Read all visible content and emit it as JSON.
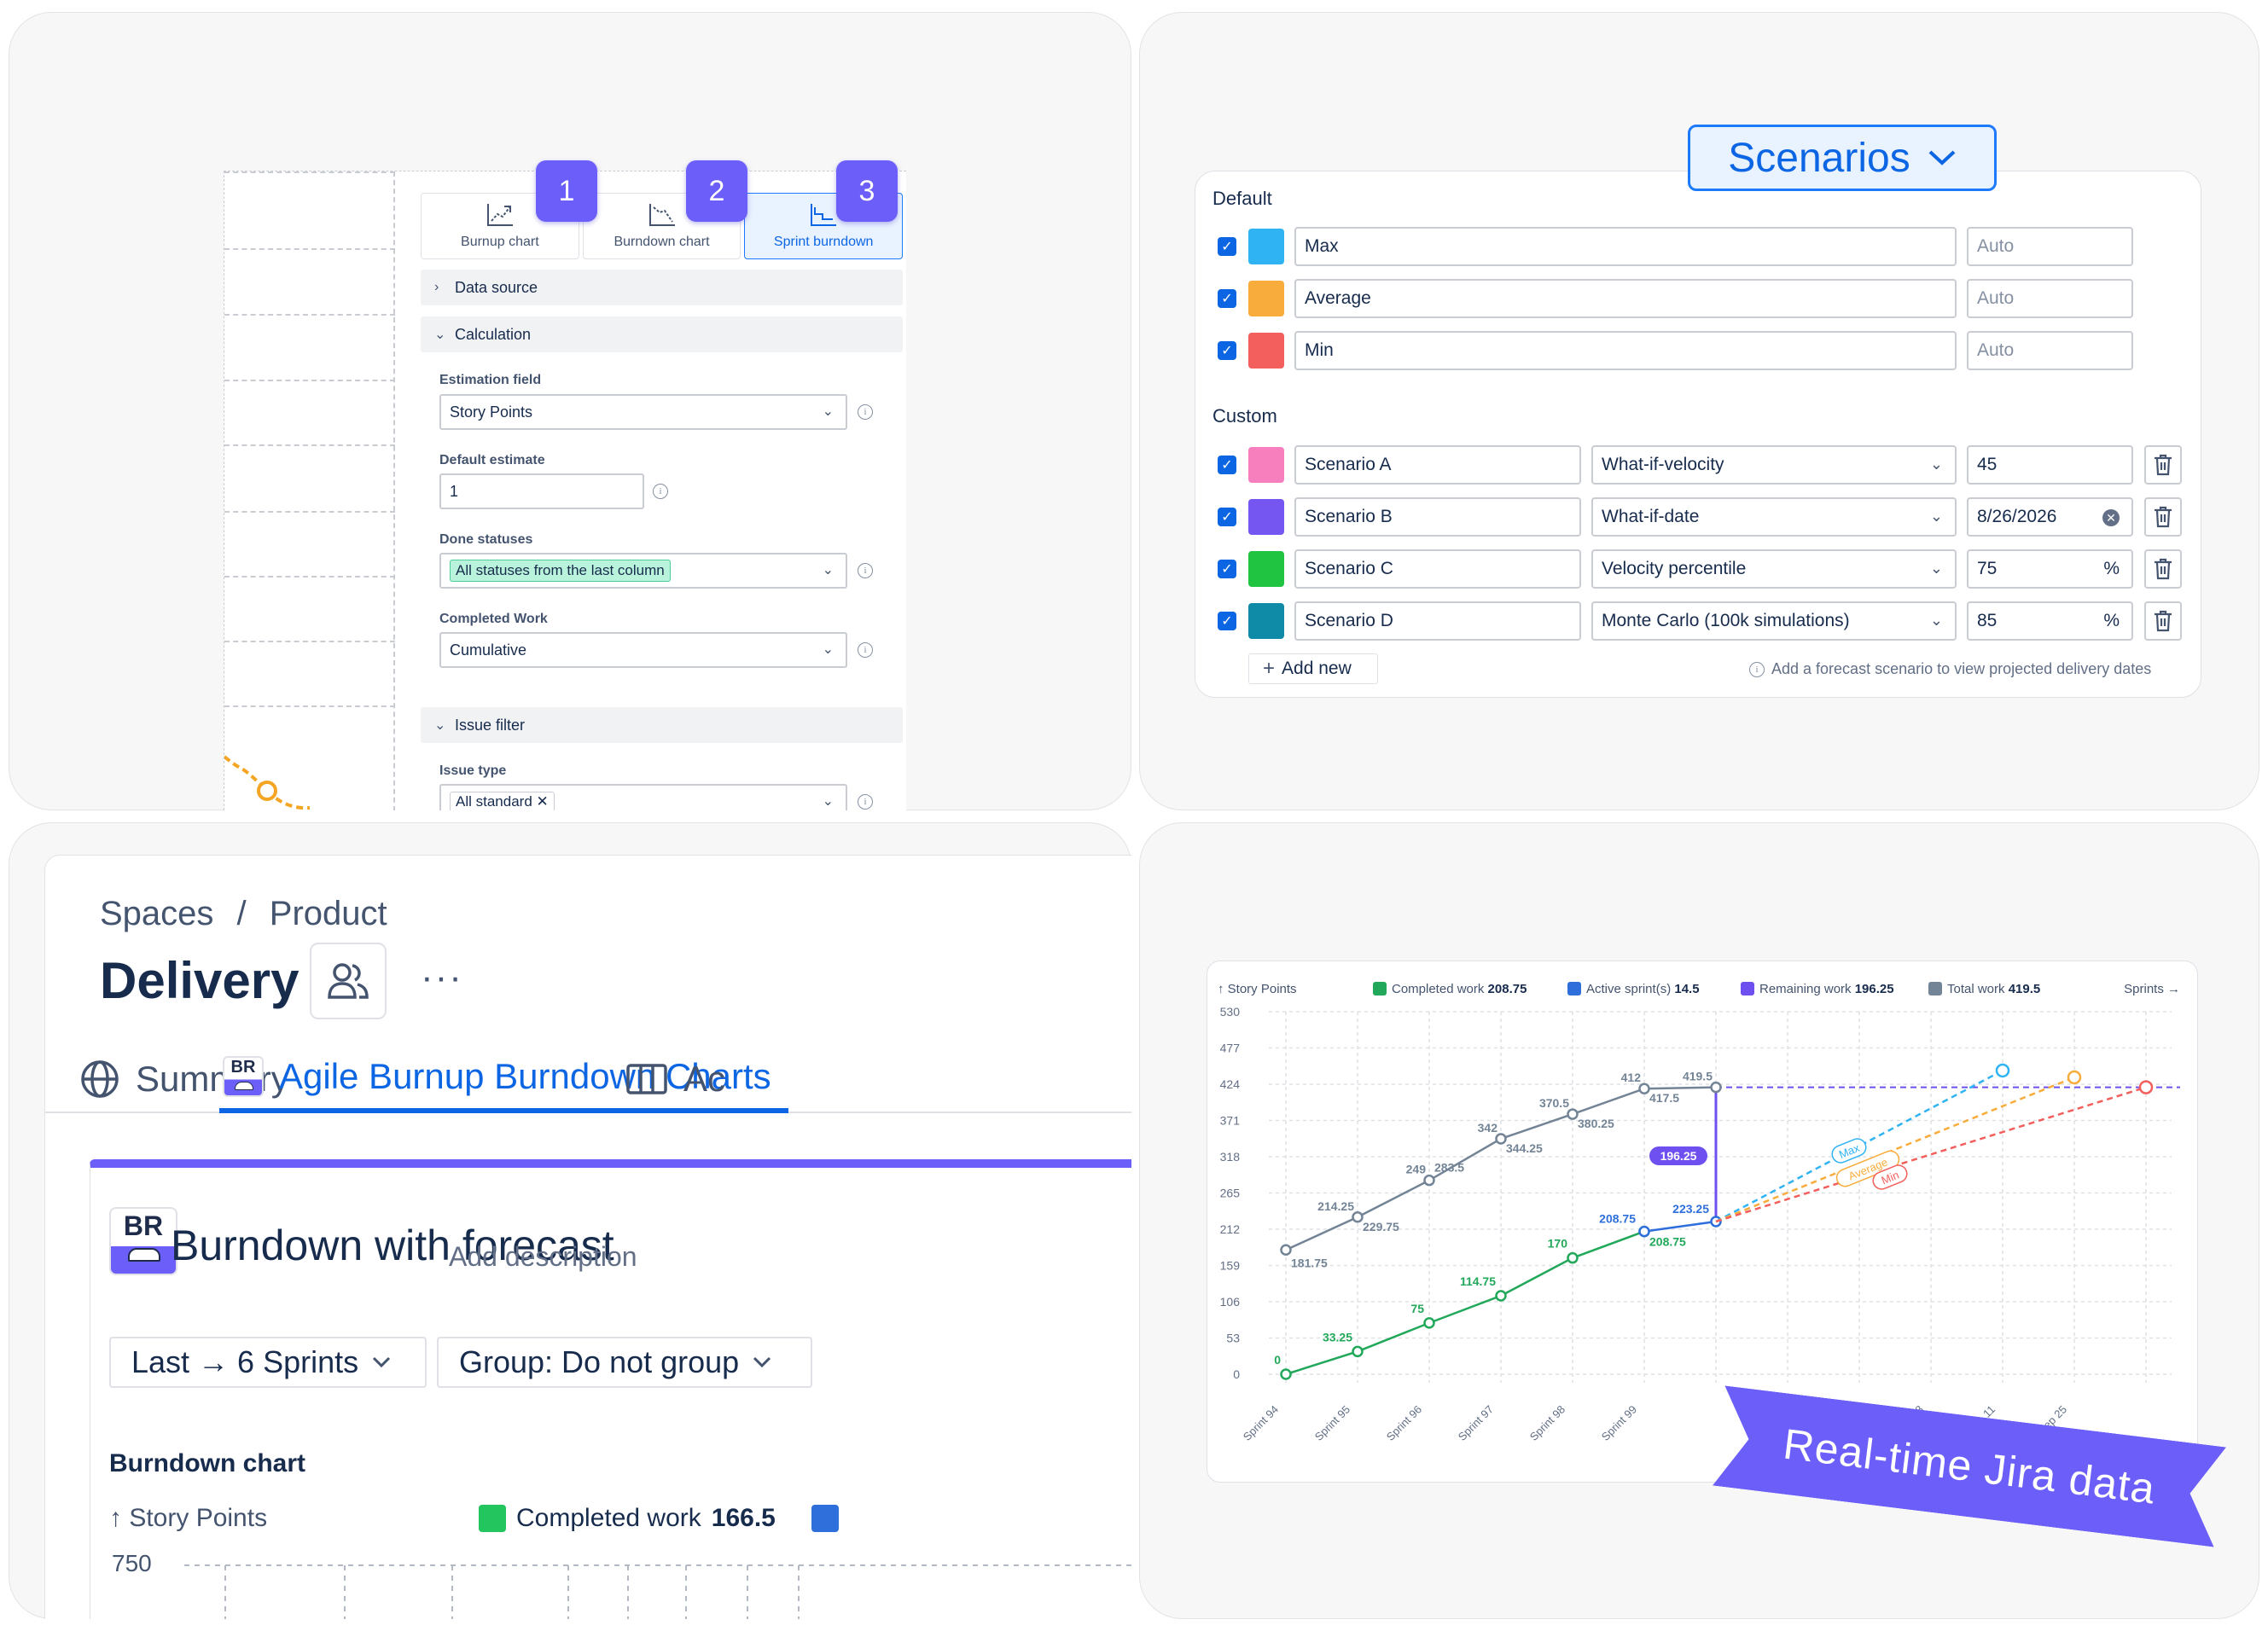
{
  "settings": {
    "chart_types": [
      {
        "label": "Burnup chart",
        "step": "1"
      },
      {
        "label": "Burndown chart",
        "step": "2"
      },
      {
        "label": "Sprint burndown",
        "step": "3"
      }
    ],
    "sections": {
      "data_source": "Data source",
      "calculation": "Calculation",
      "issue_filter": "Issue filter"
    },
    "fields": {
      "estimation_field_label": "Estimation field",
      "estimation_field_value": "Story Points",
      "default_estimate_label": "Default estimate",
      "default_estimate_value": "1",
      "done_statuses_label": "Done statuses",
      "done_statuses_value": "All statuses from the last column",
      "completed_work_label": "Completed Work",
      "completed_work_value": "Cumulative",
      "issue_type_label": "Issue type",
      "issue_type_value": "All standard"
    }
  },
  "scenarios": {
    "button_label": "Scenarios",
    "default_label": "Default",
    "custom_label": "Custom",
    "default_rows": [
      {
        "name": "Max",
        "color": "#2fb3f3",
        "mode": "Auto"
      },
      {
        "name": "Average",
        "color": "#f8ac3b",
        "mode": "Auto"
      },
      {
        "name": "Min",
        "color": "#f25f5c",
        "mode": "Auto"
      }
    ],
    "custom_rows": [
      {
        "name": "Scenario A",
        "color": "#f77fbe",
        "type": "What-if-velocity",
        "value": "45"
      },
      {
        "name": "Scenario B",
        "color": "#7656f0",
        "type": "What-if-date",
        "value": "8/26/2026"
      },
      {
        "name": "Scenario C",
        "color": "#21c441",
        "type": "Velocity percentile",
        "value": "75",
        "suffix": "%"
      },
      {
        "name": "Scenario D",
        "color": "#0f8ba8",
        "type": "Monte Carlo (100k simulations)",
        "value": "85",
        "suffix": "%"
      }
    ],
    "add_new_label": "Add new",
    "hint": "Add a forecast scenario to view projected delivery dates"
  },
  "jira": {
    "breadcrumb_root": "Spaces",
    "breadcrumb_sep": "/",
    "breadcrumb_leaf": "Product",
    "page_title": "Delivery",
    "more_label": "···",
    "tabs": [
      {
        "label": "Summary"
      },
      {
        "label": "Agile Burnup Burndown Charts"
      },
      {
        "label": "Ac"
      }
    ],
    "gadget": {
      "title": "Burndown with forecast",
      "description_placeholder": "Add description",
      "logo_text": "BR",
      "filter_sprints": "Last → 6 Sprints",
      "filter_group": "Group: Do not group",
      "chart_title": "Burndown chart",
      "y_axis_label": "↑ Story Points",
      "legend_completed_label": "Completed work",
      "legend_completed_value": "166.5",
      "first_tick": "750"
    }
  },
  "chart_data": {
    "type": "line",
    "ylabel": "↑ Story Points",
    "xlabel": "Sprints →",
    "ylim": [
      0,
      530
    ],
    "yticks": [
      0,
      53,
      106,
      159,
      212,
      265,
      318,
      371,
      424,
      477,
      530
    ],
    "categories": [
      "Sprint 94",
      "Sprint 95",
      "Sprint 96",
      "Sprint 97",
      "Sprint 98",
      "Sprint 99",
      "",
      "",
      "",
      "15 - Aug 28",
      "29 - Sep 11",
      "Sep 12 - Sep 25",
      ""
    ],
    "legend": [
      {
        "label": "Completed work",
        "value": "208.75",
        "color": "#22a85a"
      },
      {
        "label": "Active sprint(s)",
        "value": "14.5",
        "color": "#2f6fdb"
      },
      {
        "label": "Remaining work",
        "value": "196.25",
        "color": "#6e4ff0"
      },
      {
        "label": "Total work",
        "value": "419.5",
        "color": "#738496"
      }
    ],
    "series": [
      {
        "name": "Completed work",
        "color": "#22a85a",
        "x": [
          0,
          1,
          2,
          3,
          4,
          5
        ],
        "values": [
          0,
          33.25,
          75,
          114.75,
          170,
          208.75
        ],
        "labels": [
          "0",
          "33.25",
          "75",
          "114.75",
          "170",
          "208.75"
        ]
      },
      {
        "name": "Total work",
        "color": "#738496",
        "x": [
          0,
          1,
          2,
          3,
          4,
          5,
          6
        ],
        "values": [
          181.75,
          229.75,
          283.5,
          344.25,
          380.25,
          417.5,
          419.5
        ]
      },
      {
        "name": "Active sprint(s)",
        "color": "#2f6fdb",
        "x": [
          5,
          6
        ],
        "values": [
          208.75,
          223.25
        ]
      },
      {
        "name": "Max",
        "color": "#2fb3f3",
        "x": [
          6,
          10
        ],
        "values": [
          223.25,
          444
        ]
      },
      {
        "name": "Average",
        "color": "#f8ac3b",
        "x": [
          6,
          11
        ],
        "values": [
          223.25,
          434
        ]
      },
      {
        "name": "Min",
        "color": "#f25f5c",
        "x": [
          6,
          12
        ],
        "values": [
          223.25,
          419.5
        ]
      }
    ],
    "total_labels": [
      {
        "x": 0,
        "y": 181.75,
        "text": "181.75",
        "pos": "below"
      },
      {
        "x": 1,
        "y": 229.75,
        "text": "214.25",
        "pos": "above-left"
      },
      {
        "x": 1,
        "y": 229.75,
        "text": "229.75",
        "pos": "below-right"
      },
      {
        "x": 2,
        "y": 283.5,
        "text": "249",
        "pos": "above-left"
      },
      {
        "x": 2,
        "y": 283.5,
        "text": "283.5",
        "pos": "above-right"
      },
      {
        "x": 3,
        "y": 344.25,
        "text": "342",
        "pos": "above-left"
      },
      {
        "x": 3,
        "y": 344.25,
        "text": "344.25",
        "pos": "below-right"
      },
      {
        "x": 4,
        "y": 380.25,
        "text": "370.5",
        "pos": "above-left"
      },
      {
        "x": 4,
        "y": 380.25,
        "text": "380.25",
        "pos": "below-right"
      },
      {
        "x": 5,
        "y": 417.5,
        "text": "412",
        "pos": "above-left"
      },
      {
        "x": 5,
        "y": 417.5,
        "text": "417.5",
        "pos": "below-right"
      },
      {
        "x": 6,
        "y": 419.5,
        "text": "419.5",
        "pos": "above-left"
      }
    ],
    "active_label": "223.25",
    "remaining_badge": "196.25",
    "scenario_tags": [
      "Max",
      "Average",
      "Min"
    ],
    "ribbon_text": "Real-time Jira data"
  }
}
